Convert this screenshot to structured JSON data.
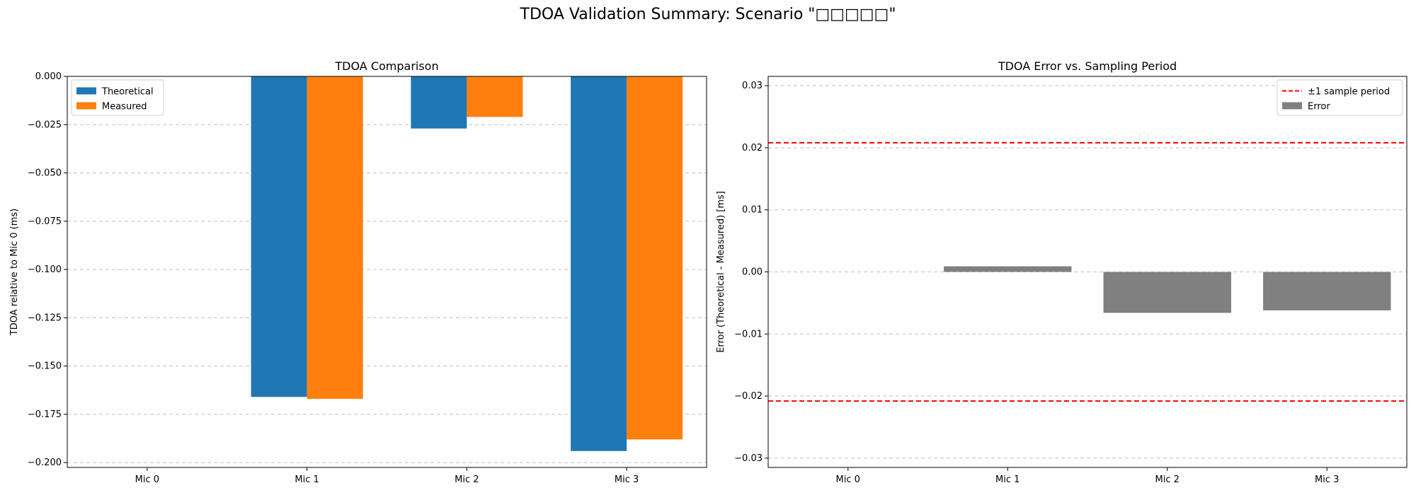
{
  "figure": {
    "suptitle": "TDOA Validation Summary: Scenario \"□□□□□\""
  },
  "chart_data": [
    {
      "type": "bar",
      "title": "TDOA Comparison",
      "xlabel": "",
      "ylabel": "TDOA relative to Mic 0 (ms)",
      "categories": [
        "Mic 0",
        "Mic 1",
        "Mic 2",
        "Mic 3"
      ],
      "series": [
        {
          "name": "Theoretical",
          "color": "#1f77b4",
          "values": [
            0.0,
            -0.166,
            -0.027,
            -0.194
          ]
        },
        {
          "name": "Measured",
          "color": "#ff7f0e",
          "values": [
            0.0,
            -0.167,
            -0.021,
            -0.188
          ]
        }
      ],
      "ylim": [
        -0.2025,
        0.0
      ],
      "yticks": [
        0.0,
        -0.025,
        -0.05,
        -0.075,
        -0.1,
        -0.125,
        -0.15,
        -0.175,
        -0.2
      ],
      "ytick_labels": [
        "0.000",
        "−0.025",
        "−0.050",
        "−0.075",
        "−0.100",
        "−0.125",
        "−0.150",
        "−0.175",
        "−0.200"
      ],
      "grid": "y-dashed",
      "legend_position": "upper-left"
    },
    {
      "type": "bar",
      "title": "TDOA Error vs. Sampling Period",
      "xlabel": "",
      "ylabel": "Error (Theoretical - Measured) [ms]",
      "categories": [
        "Mic 0",
        "Mic 1",
        "Mic 2",
        "Mic 3"
      ],
      "series": [
        {
          "name": "Error",
          "color": "#808080",
          "values": [
            0.0,
            0.0009,
            -0.0066,
            -0.0062
          ]
        }
      ],
      "reference_lines": [
        {
          "name": "±1 sample period",
          "color": "#ff0000",
          "style": "dashed",
          "values": [
            0.0208,
            -0.0208
          ]
        }
      ],
      "ylim": [
        -0.0315,
        0.0315
      ],
      "yticks": [
        0.03,
        0.02,
        0.01,
        0.0,
        -0.01,
        -0.02,
        -0.03
      ],
      "ytick_labels": [
        "0.03",
        "0.02",
        "0.01",
        "0.00",
        "−0.01",
        "−0.02",
        "−0.03"
      ],
      "grid": "y-dashed",
      "legend_position": "upper-right"
    }
  ]
}
